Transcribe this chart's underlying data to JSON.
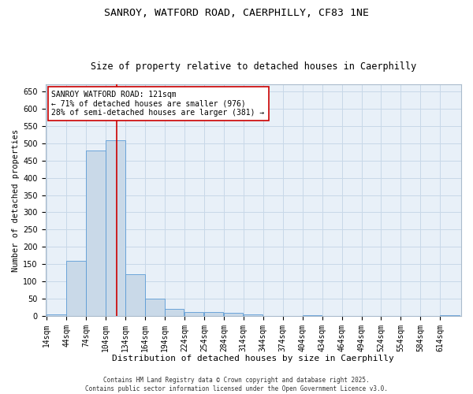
{
  "title1": "SANROY, WATFORD ROAD, CAERPHILLY, CF83 1NE",
  "title2": "Size of property relative to detached houses in Caerphilly",
  "xlabel": "Distribution of detached houses by size in Caerphilly",
  "ylabel": "Number of detached properties",
  "bins": [
    14,
    44,
    74,
    104,
    134,
    164,
    194,
    224,
    254,
    284,
    314,
    344,
    374,
    404,
    434,
    464,
    494,
    524,
    554,
    584,
    614
  ],
  "heights": [
    5,
    160,
    480,
    510,
    120,
    50,
    20,
    12,
    10,
    8,
    5,
    0,
    0,
    3,
    0,
    0,
    0,
    0,
    0,
    0,
    3
  ],
  "bar_color": "#c9d9e8",
  "bar_edge_color": "#5b9bd5",
  "vline_x": 121,
  "vline_color": "#cc0000",
  "annotation_line1": "SANROY WATFORD ROAD: 121sqm",
  "annotation_line2": "← 71% of detached houses are smaller (976)",
  "annotation_line3": "28% of semi-detached houses are larger (381) →",
  "annotation_box_color": "#cc0000",
  "ylim": [
    0,
    670
  ],
  "yticks": [
    0,
    50,
    100,
    150,
    200,
    250,
    300,
    350,
    400,
    450,
    500,
    550,
    600,
    650
  ],
  "grid_color": "#c8d8e8",
  "bg_color": "#e8f0f8",
  "footer": "Contains HM Land Registry data © Crown copyright and database right 2025.\nContains public sector information licensed under the Open Government Licence v3.0.",
  "title1_fontsize": 9.5,
  "title2_fontsize": 8.5,
  "xlabel_fontsize": 8,
  "ylabel_fontsize": 7.5,
  "tick_fontsize": 7,
  "annotation_fontsize": 7,
  "footer_fontsize": 5.5
}
